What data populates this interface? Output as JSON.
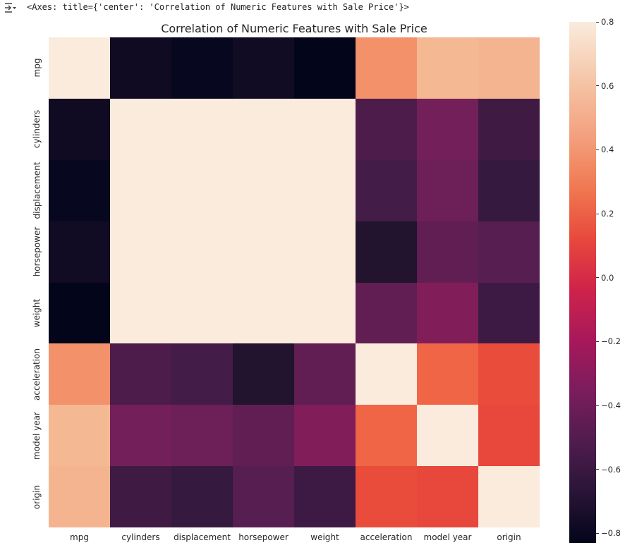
{
  "output": {
    "icon": "output-collapse-icon",
    "repr_text": "<Axes: title={'center': 'Correlation of Numeric Features with Sale Price'}>"
  },
  "chart_data": {
    "type": "heatmap",
    "title": "Correlation of Numeric Features with Sale Price",
    "xlabel": "",
    "ylabel": "",
    "colormap": "rocket",
    "x_labels": [
      "mpg",
      "cylinders",
      "displacement",
      "horsepower",
      "weight",
      "acceleration",
      "model year",
      "origin"
    ],
    "y_labels": [
      "mpg",
      "cylinders",
      "displacement",
      "horsepower",
      "weight",
      "acceleration",
      "model year",
      "origin"
    ],
    "values": [
      [
        1.0,
        -0.78,
        -0.8,
        -0.78,
        -0.83,
        0.42,
        0.58,
        0.56
      ],
      [
        -0.78,
        1.0,
        0.95,
        0.84,
        0.9,
        -0.5,
        -0.35,
        -0.56
      ],
      [
        -0.8,
        0.95,
        1.0,
        0.9,
        0.93,
        -0.54,
        -0.37,
        -0.61
      ],
      [
        -0.78,
        0.84,
        0.9,
        1.0,
        0.86,
        -0.69,
        -0.42,
        -0.46
      ],
      [
        -0.83,
        0.9,
        0.93,
        0.86,
        1.0,
        -0.42,
        -0.31,
        -0.58
      ],
      [
        0.42,
        -0.5,
        -0.54,
        -0.69,
        -0.42,
        1.0,
        0.29,
        0.21
      ],
      [
        0.58,
        -0.35,
        -0.37,
        -0.42,
        -0.31,
        0.29,
        1.0,
        0.18
      ],
      [
        0.56,
        -0.56,
        -0.61,
        -0.46,
        -0.58,
        0.21,
        0.18,
        1.0
      ]
    ],
    "cell_colors": [
      [
        "#faebdd",
        "#100b22",
        "#070720",
        "#110c24",
        "#03051a",
        "#f3916a",
        "#f4b893",
        "#f4b48f"
      ],
      [
        "#100b22",
        "#faebdd",
        "#faebdd",
        "#faebdd",
        "#faebdd",
        "#4d1c4a",
        "#73205a",
        "#3f1b44"
      ],
      [
        "#070720",
        "#faebdd",
        "#faebdd",
        "#faebdd",
        "#faebdd",
        "#431c47",
        "#6d1f57",
        "#35193e"
      ],
      [
        "#110c24",
        "#faebdd",
        "#faebdd",
        "#faebdd",
        "#faebdd",
        "#22132e",
        "#611e53",
        "#561e51"
      ],
      [
        "#03051a",
        "#faebdd",
        "#faebdd",
        "#faebdd",
        "#faebdd",
        "#601e52",
        "#811e5a",
        "#3d1a43"
      ],
      [
        "#f3916a",
        "#4d1c4a",
        "#431c47",
        "#22132e",
        "#601e52",
        "#faebdd",
        "#f06546",
        "#ea4c3c"
      ],
      [
        "#f4b893",
        "#73205a",
        "#6d1f57",
        "#611e53",
        "#811e5a",
        "#f06546",
        "#faebdd",
        "#e8473c"
      ],
      [
        "#f4b48f",
        "#3f1b44",
        "#35193e",
        "#561e51",
        "#3d1a43",
        "#ea4c3c",
        "#e8473c",
        "#faebdd"
      ]
    ],
    "colorbar": {
      "range": [
        -0.83,
        0.8
      ],
      "ticks": [
        {
          "value": 0.8,
          "label": "0.8"
        },
        {
          "value": 0.6,
          "label": "0.6"
        },
        {
          "value": 0.4,
          "label": "0.4"
        },
        {
          "value": 0.2,
          "label": "0.2"
        },
        {
          "value": 0.0,
          "label": "0.0"
        },
        {
          "value": -0.2,
          "label": "−0.2"
        },
        {
          "value": -0.4,
          "label": "−0.4"
        },
        {
          "value": -0.6,
          "label": "−0.6"
        },
        {
          "value": -0.8,
          "label": "−0.8"
        }
      ]
    },
    "grid": false,
    "legend_position": "right (colorbar)"
  }
}
